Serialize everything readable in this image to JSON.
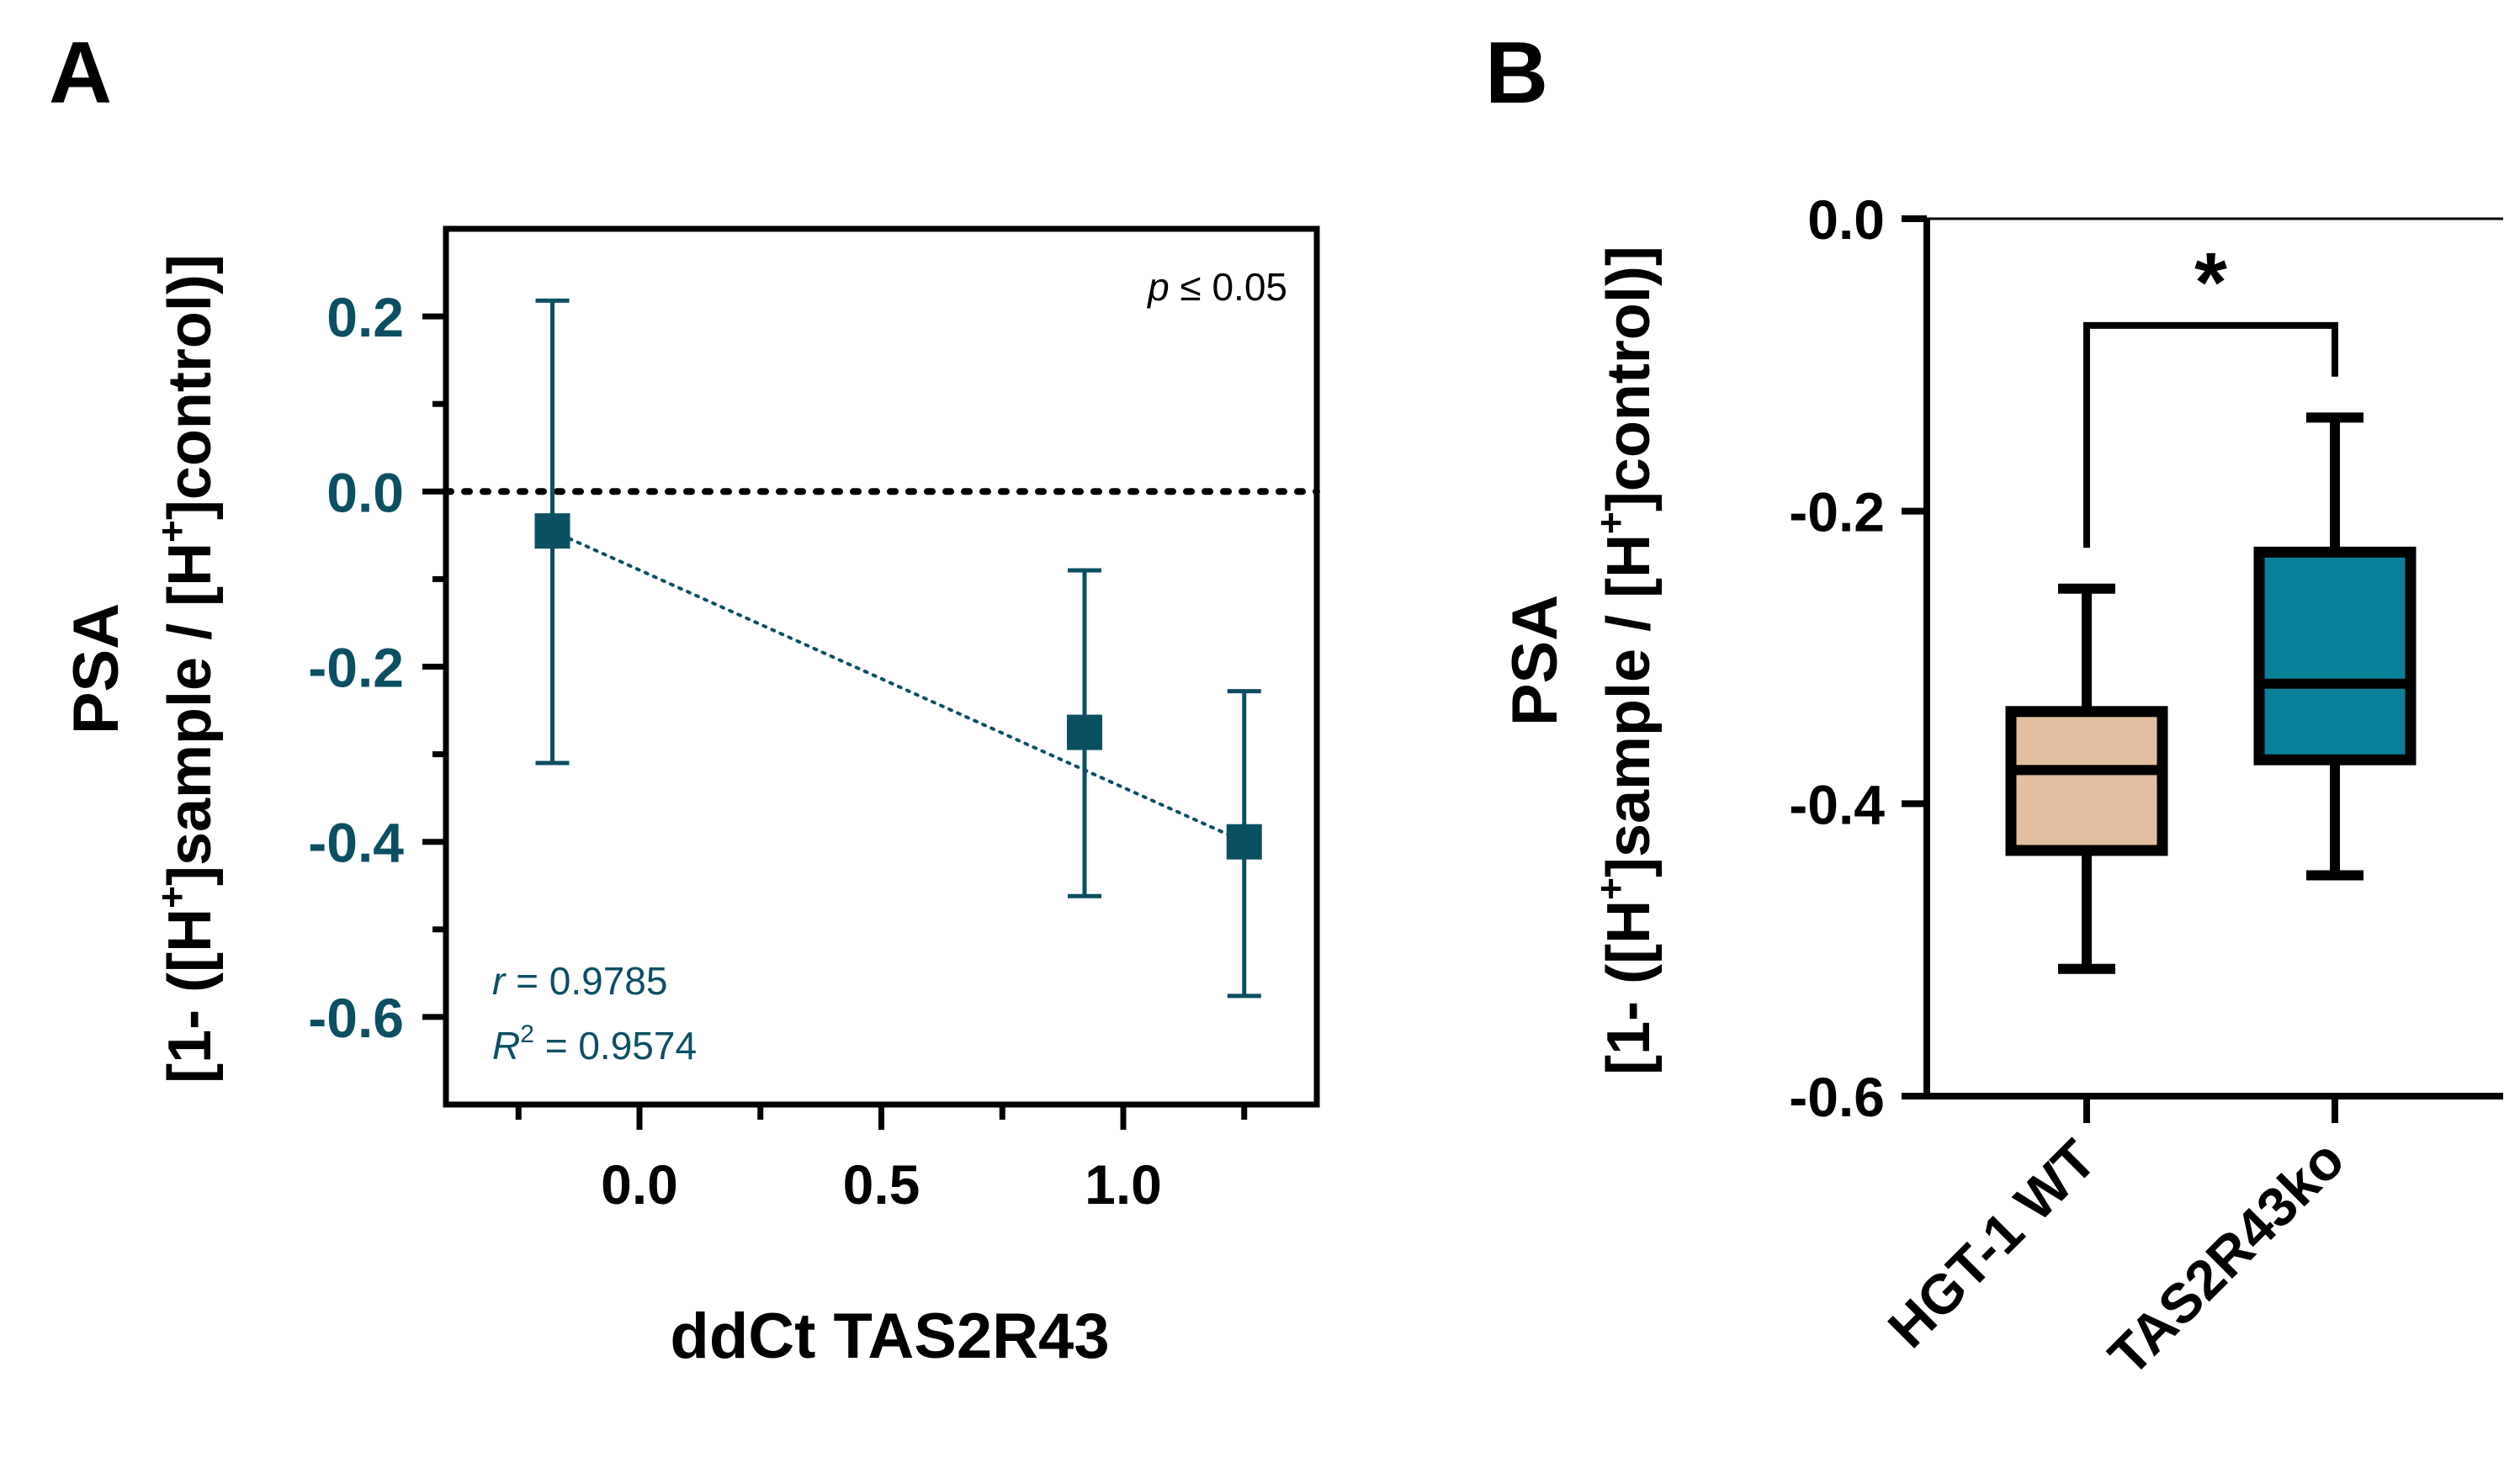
{
  "panels": {
    "a": {
      "letter": "A"
    },
    "b": {
      "letter": "B"
    }
  },
  "colors": {
    "teal_dark": "#0b4f63",
    "teal_fill": "#0a8099",
    "tan_fill": "#e3bf9f",
    "black": "#000000"
  },
  "chart_data": [
    {
      "id": "A",
      "type": "scatter",
      "xlabel": "ddCt TAS2R43",
      "ylabel_line1": "PSA",
      "ylabel_line2_parts": [
        "[1- ([H",
        "+",
        "]sample / [H",
        "+",
        "]control)]"
      ],
      "xlim": [
        -0.4,
        1.4
      ],
      "ylim": [
        -0.7,
        0.3
      ],
      "xticks": [
        0.0,
        0.5,
        1.0
      ],
      "xtick_labels": [
        "0.0",
        "0.5",
        "1.0"
      ],
      "yticks": [
        0.2,
        0.0,
        -0.2,
        -0.4,
        -0.6
      ],
      "ytick_labels": [
        "0.2",
        "0.0",
        "-0.2",
        "-0.4",
        "-0.6"
      ],
      "reference_line_y": 0.0,
      "points": [
        {
          "x": -0.18,
          "y": -0.045,
          "err_low": -0.31,
          "err_high": 0.218
        },
        {
          "x": 0.92,
          "y": -0.275,
          "err_low": -0.462,
          "err_high": -0.09
        },
        {
          "x": 1.25,
          "y": -0.4,
          "err_low": -0.576,
          "err_high": -0.228
        }
      ],
      "regression_line": {
        "x": [
          -0.18,
          1.25
        ],
        "y": [
          -0.045,
          -0.4
        ]
      },
      "annotations": {
        "p_italic": "p",
        "p_rest": " ≤ 0.05",
        "r_italic": "r",
        "r_rest": " = 0.9785",
        "r2_italic": "R",
        "r2_sup": "2",
        "r2_rest": " = 0.9574"
      }
    },
    {
      "id": "B",
      "type": "box",
      "ylabel_line1": "PSA",
      "ylabel_line2_parts": [
        "[1- ([H",
        "+",
        "]sample / [H",
        "+",
        "]control)]"
      ],
      "ylim": [
        -0.6,
        0.0
      ],
      "yticks": [
        0.0,
        -0.2,
        -0.4,
        -0.6
      ],
      "ytick_labels": [
        "0.0",
        "-0.2",
        "-0.4",
        "-0.6"
      ],
      "categories": [
        "HGT-1 WT",
        "TAS2R43ko"
      ],
      "boxes": [
        {
          "name": "HGT-1 WT",
          "min": -0.513,
          "q1": -0.432,
          "median": -0.377,
          "q3": -0.337,
          "max": -0.253
        },
        {
          "name": "TAS2R43ko",
          "min": -0.449,
          "q1": -0.37,
          "median": -0.318,
          "q3": -0.228,
          "max": -0.136
        }
      ],
      "significance": {
        "label": "*",
        "y": -0.073
      }
    }
  ]
}
